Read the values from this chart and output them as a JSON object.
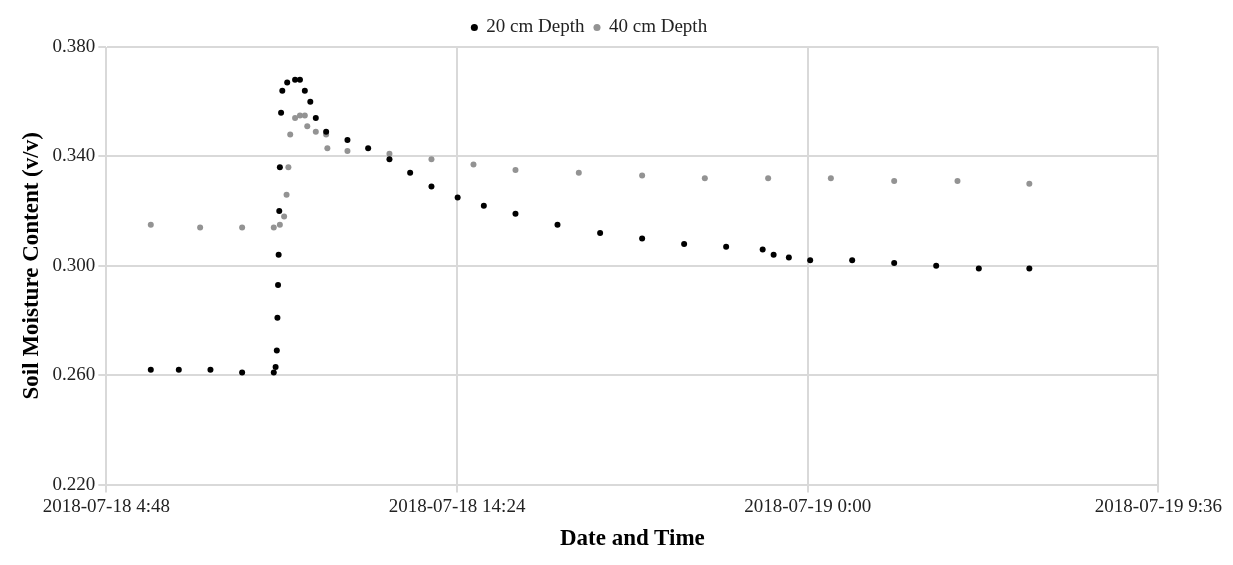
{
  "chart_data": {
    "type": "scatter",
    "xlabel": "Date and Time",
    "ylabel": "Soil Moisture Content (v/v)",
    "legend": "top",
    "grid": true,
    "marker": "circle",
    "xlim": [
      "2018-07-18T04:48",
      "2018-07-19T09:36"
    ],
    "xticks": [
      {
        "value": "2018-07-18T04:48",
        "label": "2018-07-18 4:48"
      },
      {
        "value": "2018-07-18T14:24",
        "label": "2018-07-18 14:24"
      },
      {
        "value": "2018-07-19T00:00",
        "label": "2018-07-19 0:00"
      },
      {
        "value": "2018-07-19T09:36",
        "label": "2018-07-19 9:36"
      }
    ],
    "ylim": [
      0.22,
      0.38
    ],
    "yticks": [
      {
        "value": 0.22,
        "label": "0.220"
      },
      {
        "value": 0.26,
        "label": "0.260"
      },
      {
        "value": 0.3,
        "label": "0.300"
      },
      {
        "value": 0.34,
        "label": "0.340"
      },
      {
        "value": 0.38,
        "label": "0.380"
      }
    ],
    "series": [
      {
        "name": "20 cm Depth",
        "color": "#000000",
        "x": [
          "2018-07-18T06:01",
          "2018-07-18T06:47",
          "2018-07-18T07:39",
          "2018-07-18T08:31",
          "2018-07-18T09:23",
          "2018-07-18T09:26",
          "2018-07-18T09:28",
          "2018-07-18T09:29",
          "2018-07-18T09:30",
          "2018-07-18T09:31",
          "2018-07-18T09:32",
          "2018-07-18T09:33",
          "2018-07-18T09:35",
          "2018-07-18T09:37",
          "2018-07-18T09:45",
          "2018-07-18T09:58",
          "2018-07-18T10:06",
          "2018-07-18T10:14",
          "2018-07-18T10:23",
          "2018-07-18T10:32",
          "2018-07-18T10:49",
          "2018-07-18T11:24",
          "2018-07-18T11:58",
          "2018-07-18T12:33",
          "2018-07-18T13:07",
          "2018-07-18T13:42",
          "2018-07-18T14:25",
          "2018-07-18T15:08",
          "2018-07-18T16:00",
          "2018-07-18T17:09",
          "2018-07-18T18:19",
          "2018-07-18T19:28",
          "2018-07-18T20:37",
          "2018-07-18T21:46",
          "2018-07-18T22:46",
          "2018-07-18T23:04",
          "2018-07-18T23:29",
          "2018-07-19T00:04",
          "2018-07-19T01:13",
          "2018-07-19T02:22",
          "2018-07-19T03:31",
          "2018-07-19T04:41",
          "2018-07-19T06:04"
        ],
        "values": [
          0.262,
          0.262,
          0.262,
          0.261,
          0.261,
          0.263,
          0.269,
          0.281,
          0.293,
          0.304,
          0.32,
          0.336,
          0.356,
          0.364,
          0.367,
          0.368,
          0.368,
          0.364,
          0.36,
          0.354,
          0.349,
          0.346,
          0.343,
          0.339,
          0.334,
          0.329,
          0.325,
          0.322,
          0.319,
          0.315,
          0.312,
          0.31,
          0.308,
          0.307,
          0.306,
          0.304,
          0.303,
          0.302,
          0.302,
          0.301,
          0.3,
          0.299,
          0.299
        ]
      },
      {
        "name": "40 cm Depth",
        "color": "#939393",
        "x": [
          "2018-07-18T06:01",
          "2018-07-18T07:22",
          "2018-07-18T08:31",
          "2018-07-18T09:23",
          "2018-07-18T09:33",
          "2018-07-18T09:40",
          "2018-07-18T09:44",
          "2018-07-18T09:47",
          "2018-07-18T09:50",
          "2018-07-18T09:58",
          "2018-07-18T10:06",
          "2018-07-18T10:14",
          "2018-07-18T10:18",
          "2018-07-18T10:32",
          "2018-07-18T10:49",
          "2018-07-18T10:51",
          "2018-07-18T11:24",
          "2018-07-18T12:33",
          "2018-07-18T13:42",
          "2018-07-18T14:51",
          "2018-07-18T16:00",
          "2018-07-18T17:44",
          "2018-07-18T19:28",
          "2018-07-18T21:11",
          "2018-07-18T22:55",
          "2018-07-19T00:38",
          "2018-07-19T02:22",
          "2018-07-19T04:06",
          "2018-07-19T06:04"
        ],
        "values": [
          0.315,
          0.314,
          0.314,
          0.314,
          0.315,
          0.318,
          0.326,
          0.336,
          0.348,
          0.354,
          0.355,
          0.355,
          0.351,
          0.349,
          0.348,
          0.343,
          0.342,
          0.341,
          0.339,
          0.337,
          0.335,
          0.334,
          0.333,
          0.332,
          0.332,
          0.332,
          0.331,
          0.331,
          0.33
        ]
      }
    ]
  }
}
